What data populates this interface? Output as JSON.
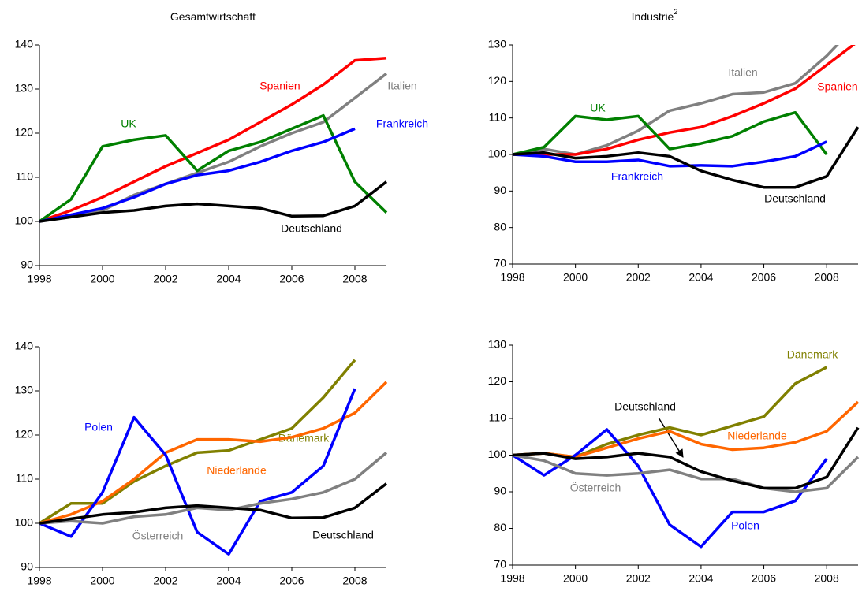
{
  "chart_data": [
    {
      "type": "line",
      "title": "Gesamtwirtschaft",
      "x": [
        1998,
        1999,
        2000,
        2001,
        2002,
        2003,
        2004,
        2005,
        2006,
        2007,
        2008,
        2009
      ],
      "xlim": [
        1998,
        2009
      ],
      "xticks": [
        1998,
        2000,
        2002,
        2004,
        2006,
        2008
      ],
      "ylim": [
        90,
        140
      ],
      "yticks": [
        90,
        100,
        110,
        120,
        130,
        140
      ],
      "series": [
        {
          "name": "Spanien",
          "color": "#ff0000",
          "values": [
            100,
            102.5,
            105.5,
            109,
            112.5,
            115.5,
            118.5,
            122.5,
            126.5,
            131,
            136.5,
            137
          ]
        },
        {
          "name": "Italien",
          "color": "#808080",
          "values": [
            100,
            101.5,
            102.5,
            106,
            108.5,
            111,
            113.5,
            117,
            120,
            122.5,
            128,
            133.5
          ]
        },
        {
          "name": "UK",
          "color": "#008000",
          "values": [
            100,
            105,
            117,
            118.5,
            119.5,
            111.5,
            116,
            118,
            121,
            124,
            109,
            102
          ]
        },
        {
          "name": "Frankreich",
          "color": "#0000ff",
          "values": [
            100,
            101.5,
            103,
            105.5,
            108.5,
            110.5,
            111.5,
            113.5,
            116,
            118,
            121,
            null
          ]
        },
        {
          "name": "Deutschland",
          "color": "#000000",
          "values": [
            100,
            101,
            102,
            102.5,
            103.5,
            104,
            103.5,
            103,
            101.2,
            101.3,
            103.5,
            109
          ]
        }
      ]
    },
    {
      "type": "line",
      "title": "Industrie",
      "title_superscript": "2",
      "x": [
        1998,
        1999,
        2000,
        2001,
        2002,
        2003,
        2004,
        2005,
        2006,
        2007,
        2008,
        2009
      ],
      "xlim": [
        1998,
        2009
      ],
      "xticks": [
        1998,
        2000,
        2002,
        2004,
        2006,
        2008
      ],
      "ylim": [
        70,
        130
      ],
      "yticks": [
        70,
        80,
        90,
        100,
        110,
        120,
        130
      ],
      "series": [
        {
          "name": "Italien",
          "color": "#808080",
          "values": [
            100,
            101.5,
            100,
            102.5,
            106.5,
            112,
            114,
            116.5,
            117,
            119.5,
            127,
            136
          ]
        },
        {
          "name": "Spanien",
          "color": "#ff0000",
          "values": [
            100,
            100,
            100,
            101.5,
            104,
            106,
            107.5,
            110.5,
            114,
            118,
            124.5,
            131
          ]
        },
        {
          "name": "UK",
          "color": "#008000",
          "values": [
            100,
            102,
            110.5,
            109.5,
            110.5,
            101.5,
            103,
            105,
            109,
            111.5,
            100,
            null
          ]
        },
        {
          "name": "Frankreich",
          "color": "#0000ff",
          "values": [
            100,
            99.5,
            98,
            98,
            98.5,
            96.8,
            97,
            96.8,
            98,
            99.5,
            103.5,
            null
          ]
        },
        {
          "name": "Deutschland",
          "color": "#000000",
          "values": [
            100,
            100.5,
            99,
            99.5,
            100.5,
            99.5,
            95.5,
            93,
            91,
            91,
            94,
            107.5
          ]
        }
      ]
    },
    {
      "type": "line",
      "x": [
        1998,
        1999,
        2000,
        2001,
        2002,
        2003,
        2004,
        2005,
        2006,
        2007,
        2008,
        2009
      ],
      "xlim": [
        1998,
        2009
      ],
      "xticks": [
        1998,
        2000,
        2002,
        2004,
        2006,
        2008
      ],
      "ylim": [
        90,
        140
      ],
      "yticks": [
        90,
        100,
        110,
        120,
        130,
        140
      ],
      "series": [
        {
          "name": "Dänemark",
          "color": "#808000",
          "values": [
            100,
            104.5,
            104.5,
            109.5,
            113,
            116,
            116.5,
            119,
            121.5,
            128.5,
            137,
            null
          ]
        },
        {
          "name": "Niederlande",
          "color": "#ff6600",
          "values": [
            100,
            102,
            105,
            110,
            116,
            119,
            119,
            118.5,
            119.5,
            121.5,
            125,
            132
          ]
        },
        {
          "name": "Polen",
          "color": "#0000ff",
          "values": [
            100,
            97,
            107,
            124,
            115.5,
            98,
            93,
            105,
            107,
            113,
            130.5,
            null
          ]
        },
        {
          "name": "Österreich",
          "color": "#808080",
          "values": [
            100,
            100.5,
            100,
            101.5,
            102,
            103.5,
            103,
            104.5,
            105.5,
            107,
            110,
            116
          ]
        },
        {
          "name": "Deutschland",
          "color": "#000000",
          "values": [
            100,
            101,
            102,
            102.5,
            103.5,
            104,
            103.5,
            103,
            101.2,
            101.3,
            103.5,
            109
          ]
        }
      ]
    },
    {
      "type": "line",
      "x": [
        1998,
        1999,
        2000,
        2001,
        2002,
        2003,
        2004,
        2005,
        2006,
        2007,
        2008,
        2009
      ],
      "xlim": [
        1998,
        2009
      ],
      "xticks": [
        1998,
        2000,
        2002,
        2004,
        2006,
        2008
      ],
      "ylim": [
        70,
        130
      ],
      "yticks": [
        70,
        80,
        90,
        100,
        110,
        120,
        130
      ],
      "series": [
        {
          "name": "Dänemark",
          "color": "#808000",
          "values": [
            100,
            100.5,
            99.5,
            103,
            105.5,
            107.5,
            105.5,
            108,
            110.5,
            119.5,
            124,
            null
          ]
        },
        {
          "name": "Niederlande",
          "color": "#ff6600",
          "values": [
            100,
            100.5,
            99.5,
            102,
            104.5,
            106.5,
            103,
            101.5,
            102,
            103.5,
            106.5,
            114.5
          ]
        },
        {
          "name": "Polen",
          "color": "#0000ff",
          "values": [
            100,
            94.5,
            100,
            107,
            97,
            81,
            75,
            84.5,
            84.5,
            87.5,
            99,
            null
          ]
        },
        {
          "name": "Österreich",
          "color": "#808080",
          "values": [
            100,
            98.5,
            95,
            94.5,
            95,
            96,
            93.5,
            93.5,
            91,
            90,
            91,
            99.5
          ]
        },
        {
          "name": "Deutschland",
          "color": "#000000",
          "values": [
            100,
            100.5,
            99,
            99.5,
            100.5,
            99.5,
            95.5,
            93,
            91,
            91,
            94,
            107.5
          ]
        }
      ]
    }
  ]
}
